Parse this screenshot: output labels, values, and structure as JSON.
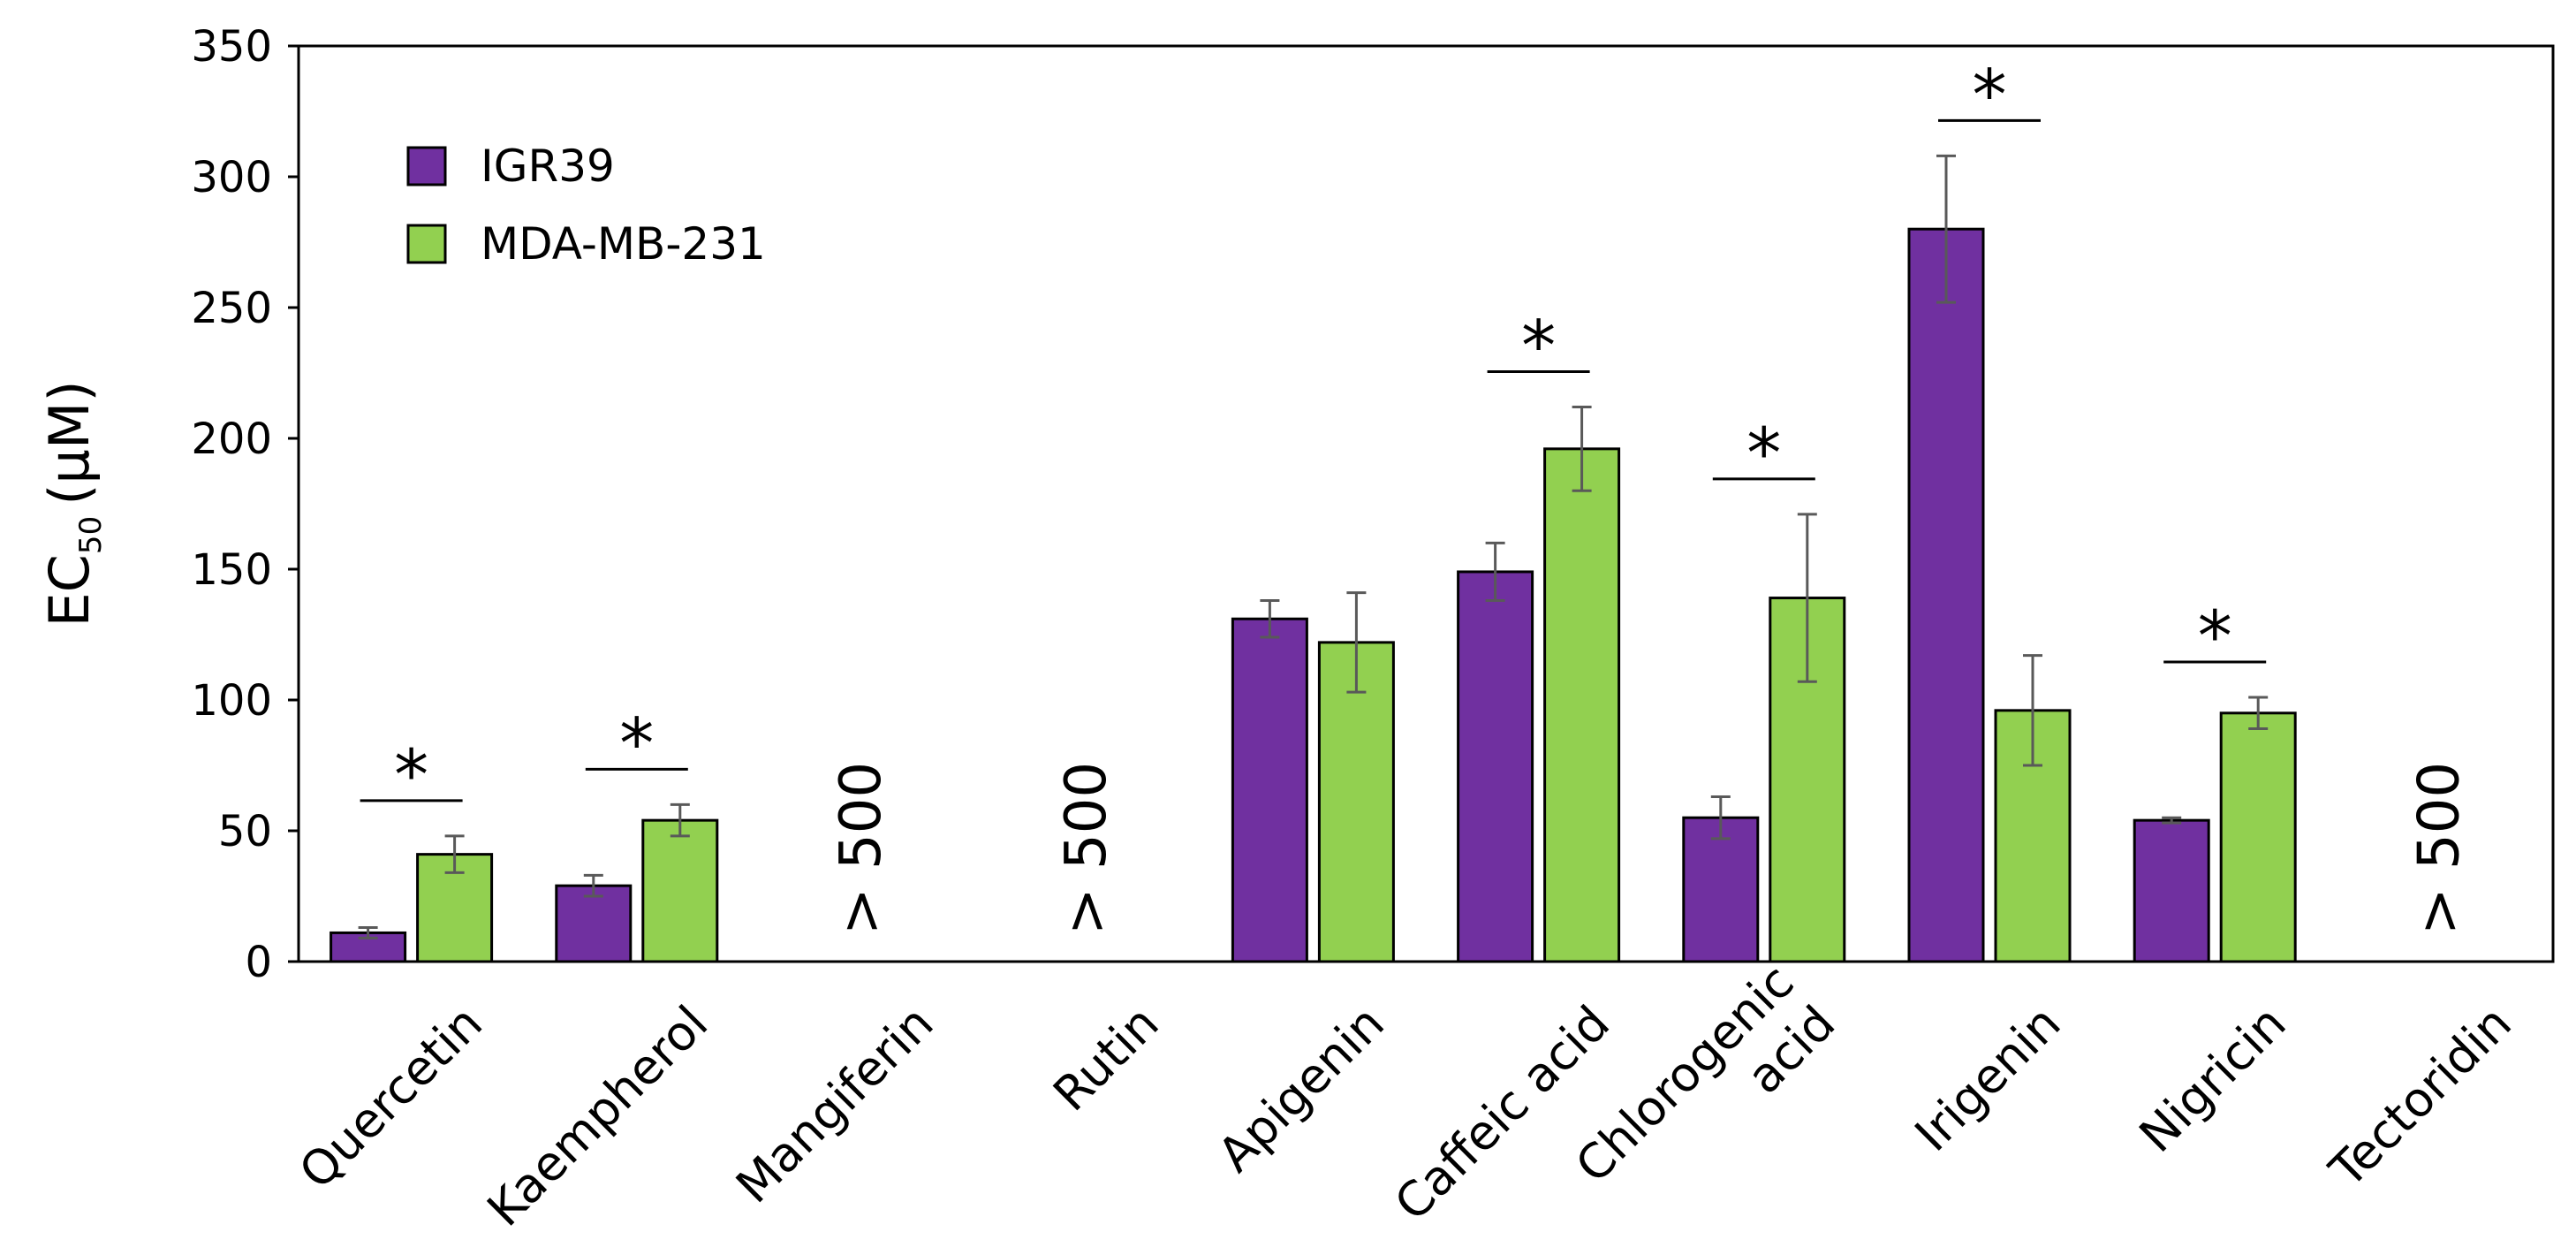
{
  "chart_data": {
    "type": "bar",
    "title": "",
    "xlabel": "",
    "ylabel": "EC",
    "ylabel_subscript": "50",
    "ylabel_suffix": "(µM)",
    "ylim": [
      0,
      350
    ],
    "yticks": [
      0,
      50,
      100,
      150,
      200,
      250,
      300,
      350
    ],
    "grid": false,
    "legend_position": "top-left",
    "categories": [
      [
        "Quercetin"
      ],
      [
        "Kaempherol"
      ],
      [
        "Mangiferin"
      ],
      [
        "Rutin"
      ],
      [
        "Apigenin"
      ],
      [
        "Caffeic acid"
      ],
      [
        "Chlorogenic",
        "acid"
      ],
      [
        "Irigenin"
      ],
      [
        "Nigricin"
      ],
      [
        "Tectoridin"
      ]
    ],
    "series": [
      {
        "name": "IGR39",
        "color": "#7030A0",
        "values": [
          11,
          29,
          null,
          null,
          131,
          149,
          55,
          280,
          54,
          null
        ],
        "errors": [
          2,
          4,
          null,
          null,
          7,
          11,
          8,
          28,
          1,
          null
        ]
      },
      {
        "name": "MDA-MB-231",
        "color": "#92D050",
        "values": [
          41,
          54,
          null,
          null,
          122,
          196,
          139,
          96,
          95,
          null
        ],
        "errors": [
          7,
          6,
          null,
          null,
          19,
          16,
          32,
          21,
          6,
          null
        ]
      }
    ],
    "significance": [
      {
        "category": 0,
        "label": "*"
      },
      {
        "category": 1,
        "label": "*"
      },
      {
        "category": 5,
        "label": "*"
      },
      {
        "category": 6,
        "label": "*"
      },
      {
        "category": 7,
        "label": "*"
      },
      {
        "category": 8,
        "label": "*"
      }
    ],
    "out_of_range": [
      {
        "category": 2,
        "label": "> 500"
      },
      {
        "category": 3,
        "label": "> 500"
      },
      {
        "category": 9,
        "label": "> 500"
      }
    ]
  }
}
